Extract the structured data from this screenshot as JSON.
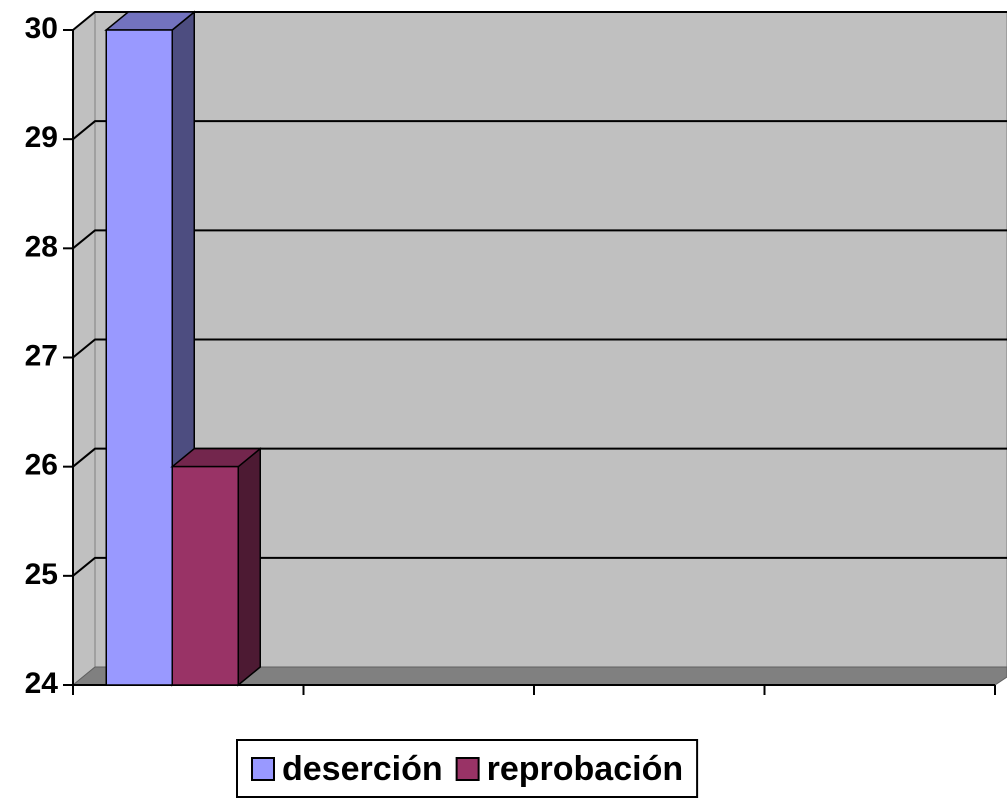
{
  "chart_data": {
    "type": "bar3d",
    "categories": [
      null,
      null,
      null,
      null
    ],
    "series": [
      {
        "name": "deserción",
        "color": "#9999ff",
        "values": [
          30,
          null,
          null,
          null
        ]
      },
      {
        "name": "reprobación",
        "color": "#993366",
        "values": [
          26,
          null,
          null,
          null
        ]
      }
    ],
    "ylim": [
      24,
      30
    ],
    "yticks": [
      24,
      25,
      26,
      27,
      28,
      29,
      30
    ],
    "grid": true,
    "legend": "bottom"
  }
}
